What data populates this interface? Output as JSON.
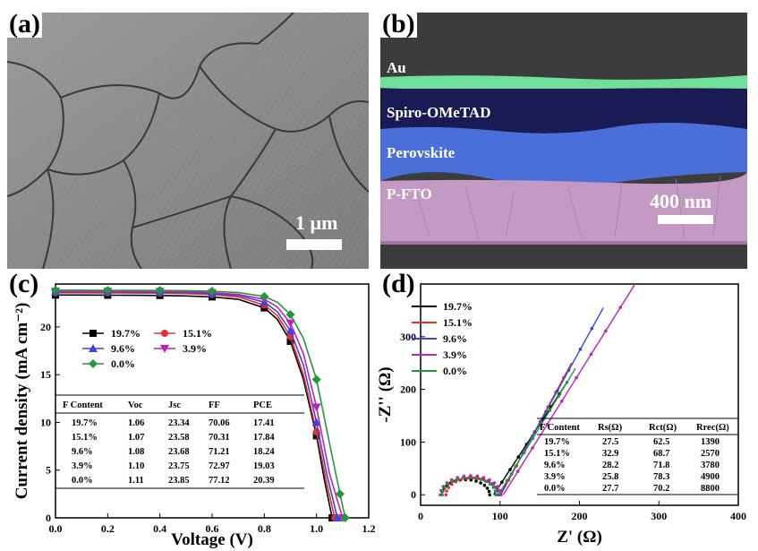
{
  "panels": {
    "a": {
      "label": "(a)",
      "scalebar": "1 µm"
    },
    "b": {
      "label": "(b)",
      "scalebar": "400 nm",
      "layers": [
        "Au",
        "Spiro-OMeTAD",
        "Perovskite",
        "P-FTO"
      ]
    },
    "c": {
      "label": "(c)"
    },
    "d": {
      "label": "(d)"
    }
  },
  "colors": {
    "s19_7": "#000000",
    "s15_1": "#e8302a",
    "s9_6": "#3b45d9",
    "s3_9": "#c21fb8",
    "s0_0": "#1f9a3a",
    "au": "#6fe09a",
    "spiro": "#1a1a55",
    "perovskite": "#4a6fd8",
    "pfto": "#c29ac4"
  },
  "chart_data": [
    {
      "type": "line",
      "xlabel": "Voltage (V)",
      "ylabel": "Current density (mA cm⁻²)",
      "xlim": [
        0.0,
        1.2
      ],
      "ylim": [
        0,
        24.5
      ],
      "xticks": [
        "0.0",
        "0.2",
        "0.4",
        "0.6",
        "0.8",
        "1.0",
        "1.2"
      ],
      "yticks": [
        "0",
        "5",
        "10",
        "15",
        "20"
      ],
      "series": [
        {
          "name": "19.7%",
          "color": "#000000",
          "marker": "square",
          "x": [
            0.0,
            0.1,
            0.2,
            0.3,
            0.4,
            0.5,
            0.6,
            0.7,
            0.8,
            0.85,
            0.9,
            0.95,
            1.0,
            1.03,
            1.06
          ],
          "y": [
            23.34,
            23.34,
            23.33,
            23.32,
            23.3,
            23.25,
            23.15,
            22.9,
            22.0,
            20.8,
            18.5,
            14.5,
            8.6,
            4.0,
            0.0
          ]
        },
        {
          "name": "15.1%",
          "color": "#e8302a",
          "marker": "circle",
          "x": [
            0.0,
            0.1,
            0.2,
            0.3,
            0.4,
            0.5,
            0.6,
            0.7,
            0.8,
            0.85,
            0.9,
            0.95,
            1.0,
            1.04,
            1.07
          ],
          "y": [
            23.58,
            23.58,
            23.57,
            23.56,
            23.54,
            23.5,
            23.4,
            23.15,
            22.3,
            21.2,
            19.0,
            15.0,
            9.0,
            3.5,
            0.0
          ]
        },
        {
          "name": "9.6%",
          "color": "#3b45d9",
          "marker": "triangle-up",
          "x": [
            0.0,
            0.1,
            0.2,
            0.3,
            0.4,
            0.5,
            0.6,
            0.7,
            0.8,
            0.85,
            0.9,
            0.95,
            1.0,
            1.04,
            1.08
          ],
          "y": [
            23.68,
            23.68,
            23.67,
            23.66,
            23.64,
            23.6,
            23.5,
            23.3,
            22.6,
            21.6,
            19.6,
            16.0,
            10.0,
            4.5,
            0.0
          ]
        },
        {
          "name": "3.9%",
          "color": "#c21fb8",
          "marker": "triangle-down",
          "x": [
            0.0,
            0.1,
            0.2,
            0.3,
            0.4,
            0.5,
            0.6,
            0.7,
            0.8,
            0.85,
            0.9,
            0.95,
            1.0,
            1.05,
            1.1
          ],
          "y": [
            23.75,
            23.75,
            23.74,
            23.73,
            23.72,
            23.68,
            23.6,
            23.4,
            22.9,
            22.1,
            20.4,
            17.2,
            11.6,
            4.6,
            0.0
          ]
        },
        {
          "name": "0.0%",
          "color": "#1f9a3a",
          "marker": "diamond",
          "x": [
            0.0,
            0.1,
            0.2,
            0.3,
            0.4,
            0.5,
            0.6,
            0.7,
            0.8,
            0.85,
            0.9,
            0.95,
            1.0,
            1.05,
            1.09,
            1.11
          ],
          "y": [
            23.85,
            23.85,
            23.84,
            23.84,
            23.83,
            23.8,
            23.75,
            23.6,
            23.2,
            22.6,
            21.3,
            18.8,
            14.5,
            7.8,
            2.5,
            0.0
          ]
        }
      ],
      "table": {
        "headers": [
          "F Content",
          "Voc",
          "Jsc",
          "FF",
          "PCE"
        ],
        "rows": [
          [
            "19.7%",
            "1.06",
            "23.34",
            "70.06",
            "17.41"
          ],
          [
            "15.1%",
            "1.07",
            "23.58",
            "70.31",
            "17.84"
          ],
          [
            "9.6%",
            "1.08",
            "23.68",
            "71.21",
            "18.24"
          ],
          [
            "3.9%",
            "1.10",
            "23.75",
            "72.97",
            "19.03"
          ],
          [
            "0.0%",
            "1.11",
            "23.85",
            "77.12",
            "20.39"
          ]
        ]
      }
    },
    {
      "type": "scatter",
      "xlabel": "Z' (Ω)",
      "ylabel": "-Z'' (Ω)",
      "xlim": [
        0,
        400
      ],
      "ylim": [
        -20,
        400
      ],
      "xticks": [
        "0",
        "100",
        "200",
        "300",
        "400"
      ],
      "yticks": [
        "0",
        "100",
        "200",
        "300"
      ],
      "series": [
        {
          "name": "19.7%",
          "color": "#000000",
          "rs": 27.5,
          "rct": 62.5,
          "line": [
            [
              92,
              0
            ],
            [
              185,
              215
            ]
          ]
        },
        {
          "name": "15.1%",
          "color": "#e8302a",
          "rs": 32.9,
          "rct": 68.7,
          "line": [
            [
              101,
              0
            ],
            [
              190,
              250
            ]
          ]
        },
        {
          "name": "9.6%",
          "color": "#3b45d9",
          "rs": 28.2,
          "rct": 71.8,
          "line": [
            [
              100,
              0
            ],
            [
              230,
              355
            ]
          ]
        },
        {
          "name": "3.9%",
          "color": "#c21fb8",
          "rs": 25.8,
          "rct": 78.3,
          "line": [
            [
              104,
              0
            ],
            [
              270,
              400
            ]
          ]
        },
        {
          "name": "0.0%",
          "color": "#1f9a3a",
          "rs": 27.7,
          "rct": 70.2,
          "line": [
            [
              98,
              0
            ],
            [
              195,
              240
            ]
          ]
        }
      ],
      "table": {
        "headers": [
          "F Content",
          "Rs(Ω)",
          "Rct(Ω)",
          "Rrec(Ω)"
        ],
        "rows": [
          [
            "19.7%",
            "27.5",
            "62.5",
            "1390"
          ],
          [
            "15.1%",
            "32.9",
            "68.7",
            "2570"
          ],
          [
            "9.6%",
            "28.2",
            "71.8",
            "3780"
          ],
          [
            "3.9%",
            "25.8",
            "78.3",
            "4900"
          ],
          [
            "0.0%",
            "27.7",
            "70.2",
            "8800"
          ]
        ]
      }
    }
  ]
}
